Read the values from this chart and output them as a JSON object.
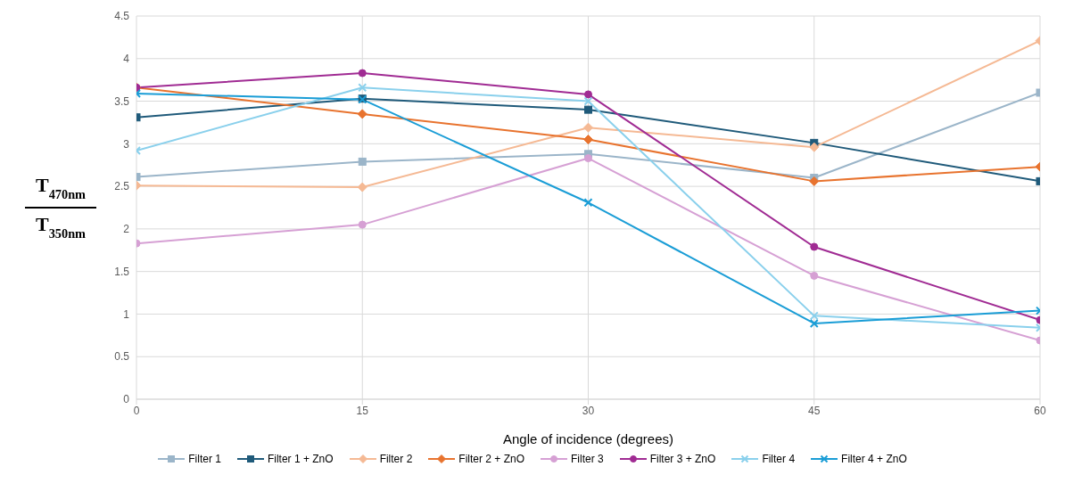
{
  "chart_data": {
    "type": "line",
    "xlabel": "Angle of incidence (degrees)",
    "ylabel": "T$_{470nm}$ T$_{350nm}$",
    "x": [
      0,
      15,
      30,
      45,
      60
    ],
    "xlim": [
      0,
      60
    ],
    "xticks": [
      0,
      15,
      30,
      45,
      60
    ],
    "ylim": [
      0,
      4.5
    ],
    "yticks": [
      0,
      0.5,
      1,
      1.5,
      2,
      2.5,
      3,
      3.5,
      4,
      4.5
    ],
    "grid": true,
    "legend": "bottom",
    "series": [
      {
        "name": "Filter 1",
        "color": "#9bb5c9",
        "marker": "square",
        "values": [
          2.61,
          2.79,
          2.88,
          2.6,
          3.6
        ]
      },
      {
        "name": "Filter 1 + ZnO",
        "color": "#1f5a7a",
        "marker": "square",
        "values": [
          3.31,
          3.53,
          3.4,
          3.01,
          2.56
        ]
      },
      {
        "name": "Filter 2",
        "color": "#f5b994",
        "marker": "diamond",
        "values": [
          2.51,
          2.49,
          3.19,
          2.96,
          4.21
        ]
      },
      {
        "name": "Filter 2 + ZnO",
        "color": "#e8732e",
        "marker": "diamond",
        "values": [
          3.66,
          3.35,
          3.05,
          2.56,
          2.73
        ]
      },
      {
        "name": "Filter 3",
        "color": "#d6a0d4",
        "marker": "circle",
        "values": [
          1.83,
          2.05,
          2.83,
          1.45,
          0.69
        ]
      },
      {
        "name": "Filter 3 + ZnO",
        "color": "#a02b93",
        "marker": "circle",
        "values": [
          3.66,
          3.83,
          3.58,
          1.79,
          0.93
        ]
      },
      {
        "name": "Filter 4",
        "color": "#8ad0ec",
        "marker": "cross",
        "values": [
          2.92,
          3.66,
          3.5,
          0.98,
          0.84
        ]
      },
      {
        "name": "Filter 4 + ZnO",
        "color": "#1a9dd6",
        "marker": "cross",
        "values": [
          3.59,
          3.52,
          2.31,
          0.89,
          1.04
        ]
      }
    ]
  }
}
